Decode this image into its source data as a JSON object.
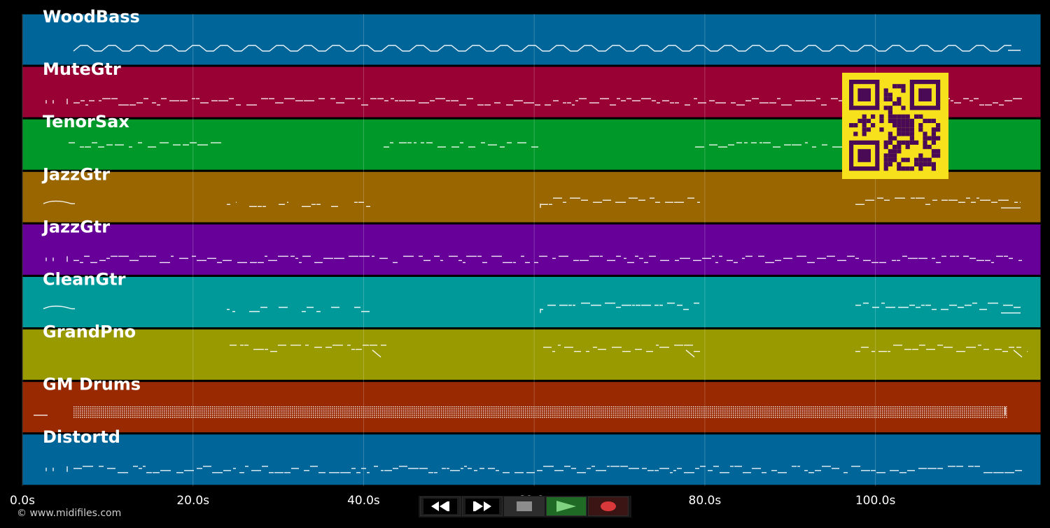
{
  "tracks": [
    {
      "name": "WoodBass",
      "color": "#006699",
      "pattern": "bass"
    },
    {
      "name": "MuteGtr",
      "color": "#990033",
      "pattern": "dense"
    },
    {
      "name": "TenorSax",
      "color": "#009929",
      "pattern": "sax"
    },
    {
      "name": "JazzGtr",
      "color": "#996600",
      "pattern": "sparse"
    },
    {
      "name": "JazzGtr",
      "color": "#660099",
      "pattern": "dense"
    },
    {
      "name": "CleanGtr",
      "color": "#009999",
      "pattern": "sparse"
    },
    {
      "name": "GrandPno",
      "color": "#999900",
      "pattern": "piano"
    },
    {
      "name": "GM Drums",
      "color": "#992900",
      "pattern": "drums"
    },
    {
      "name": "Distortd",
      "color": "#006699",
      "pattern": "dense"
    }
  ],
  "timeline": {
    "start_seconds": 0,
    "end_seconds": 119.4,
    "ticks": [
      {
        "seconds": 0,
        "label": "0.0s"
      },
      {
        "seconds": 20,
        "label": "20.0s"
      },
      {
        "seconds": 40,
        "label": "40.0s"
      },
      {
        "seconds": 60,
        "label": "60.0s"
      },
      {
        "seconds": 80,
        "label": "80.0s"
      },
      {
        "seconds": 100,
        "label": "100.0s"
      }
    ]
  },
  "copyright": "© www.midifiles.com",
  "transport": {
    "buttons": [
      {
        "name": "rewind",
        "icon": "rewind-icon"
      },
      {
        "name": "fast-forward",
        "icon": "fast-forward-icon"
      },
      {
        "name": "stop",
        "icon": "stop-icon"
      },
      {
        "name": "play",
        "icon": "play-icon"
      },
      {
        "name": "record",
        "icon": "record-icon"
      }
    ]
  },
  "qr_code": {
    "foreground": "#4a0a55",
    "background": "#f6e11c"
  }
}
